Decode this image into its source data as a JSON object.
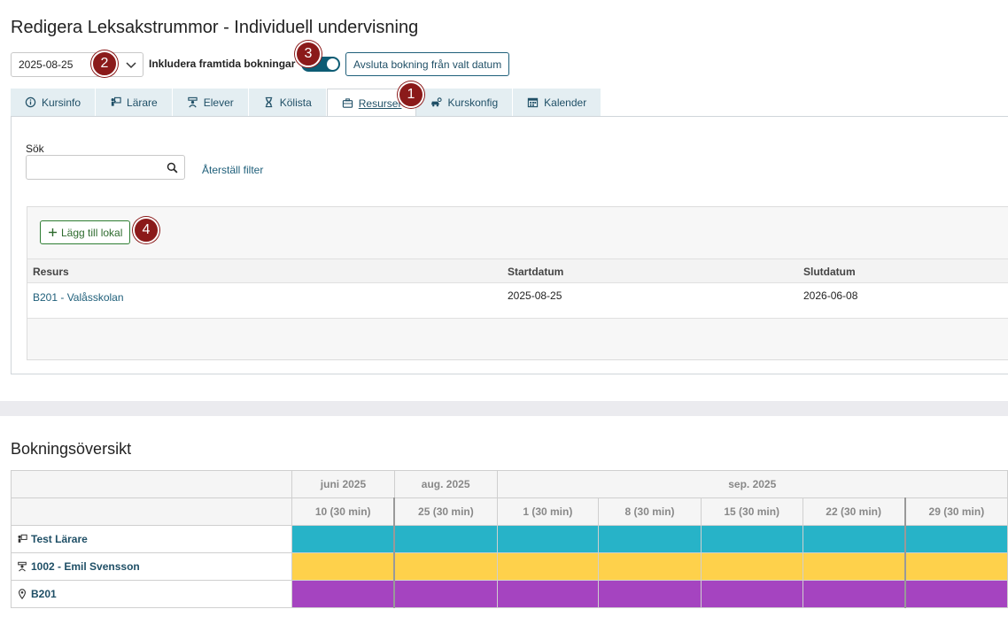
{
  "page": {
    "title": "Redigera Leksakstrummor - Individuell undervisning"
  },
  "toolbar": {
    "date_value": "2025-08-25",
    "include_label": "Inkludera framtida bokningar",
    "end_booking_label": "Avsluta bokning från valt datum",
    "toggle_on": true
  },
  "badges": {
    "b1": "1",
    "b2": "2",
    "b3": "3",
    "b4": "4"
  },
  "tabs": [
    {
      "label": "Kursinfo",
      "icon": "info-icon"
    },
    {
      "label": "Lärare",
      "icon": "teacher-icon"
    },
    {
      "label": "Elever",
      "icon": "student-icon"
    },
    {
      "label": "Kölista",
      "icon": "hourglass-icon"
    },
    {
      "label": "Resurser",
      "icon": "briefcase-icon",
      "active": true
    },
    {
      "label": "Kurskonfig",
      "icon": "car-gear-icon"
    },
    {
      "label": "Kalender",
      "icon": "calendar-icon"
    }
  ],
  "resources": {
    "search_label": "Sök",
    "search_placeholder": "",
    "reset_label": "Återställ filter",
    "add_label": "Lägg till lokal",
    "columns": {
      "resource": "Resurs",
      "start": "Startdatum",
      "end": "Slutdatum"
    },
    "rows": [
      {
        "resource": "B201 - Valåsskolan",
        "start": "2025-08-25",
        "end": "2026-06-08"
      }
    ]
  },
  "booking": {
    "title": "Bokningsöversikt",
    "months": {
      "jun": "juni 2025",
      "aug": "aug. 2025",
      "sep": "sep. 2025"
    },
    "days": [
      "10 (30 min)",
      "25 (30 min)",
      "1 (30 min)",
      "8 (30 min)",
      "15 (30 min)",
      "22 (30 min)",
      "29 (30 min)"
    ],
    "rows": [
      {
        "label": "Test Lärare",
        "icon": "teacher-icon",
        "color": "#27b3c8"
      },
      {
        "label": "1002 - Emil Svensson",
        "icon": "student-icon",
        "color": "#fed14b"
      },
      {
        "label": "B201",
        "icon": "location-pin-icon",
        "color": "#a544c0"
      }
    ]
  }
}
